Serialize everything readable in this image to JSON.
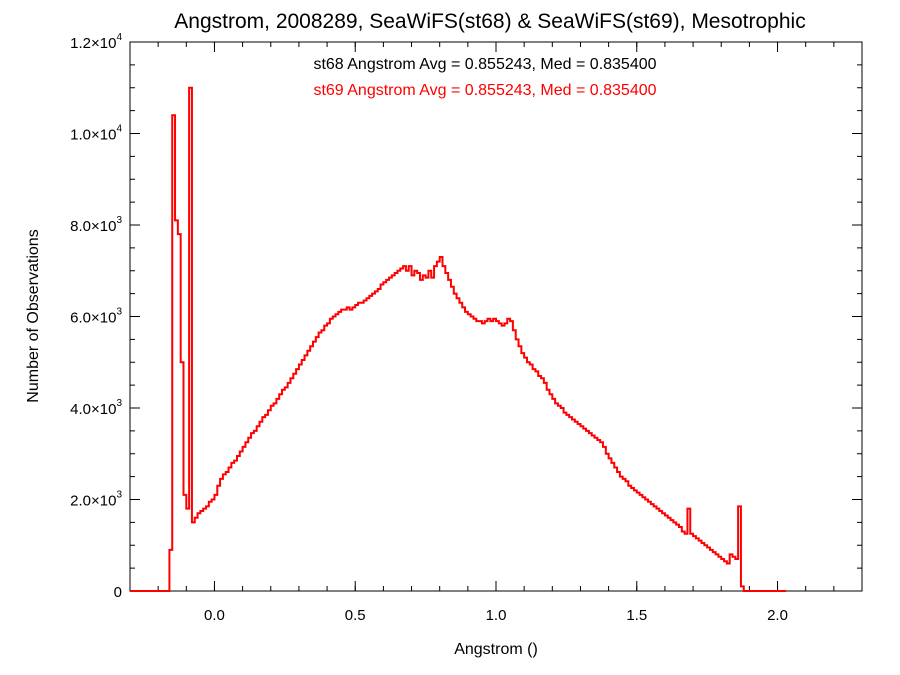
{
  "chart_data": {
    "type": "histogram",
    "title": "Angstrom, 2008289, SeaWiFS(st68) & SeaWiFS(st69), Mesotrophic",
    "xlabel": "Angstrom ()",
    "ylabel": "Number of Observations",
    "xlim": [
      -0.3,
      2.3
    ],
    "ylim": [
      0,
      12000
    ],
    "xticks": [
      {
        "value": 0.0,
        "label": "0.0"
      },
      {
        "value": 0.5,
        "label": "0.5"
      },
      {
        "value": 1.0,
        "label": "1.0"
      },
      {
        "value": 1.5,
        "label": "1.5"
      },
      {
        "value": 2.0,
        "label": "2.0"
      }
    ],
    "yticks": [
      {
        "value": 0,
        "mant": "0",
        "exp": ""
      },
      {
        "value": 2000,
        "mant": "2.0×10",
        "exp": "3"
      },
      {
        "value": 4000,
        "mant": "4.0×10",
        "exp": "3"
      },
      {
        "value": 6000,
        "mant": "6.0×10",
        "exp": "3"
      },
      {
        "value": 8000,
        "mant": "8.0×10",
        "exp": "3"
      },
      {
        "value": 10000,
        "mant": "1.0×10",
        "exp": "4"
      },
      {
        "value": 12000,
        "mant": "1.2×10",
        "exp": "4"
      }
    ],
    "annotations": [
      {
        "text": "st68 Angstrom Avg = 0.855243, Med = 0.835400",
        "color": "#000000"
      },
      {
        "text": "st69 Angstrom Avg = 0.855243, Med = 0.835400",
        "color": "#ff0000"
      }
    ],
    "colors": {
      "st68": "#000000",
      "st69": "#ff0000"
    },
    "series": [
      {
        "name": "st69",
        "color": "#ff0000",
        "bin_width": 0.01,
        "x_start": -0.3,
        "values": [
          0,
          0,
          0,
          0,
          0,
          0,
          0,
          0,
          0,
          0,
          0,
          0,
          0,
          0,
          900,
          10400,
          8100,
          7800,
          5000,
          2100,
          1800,
          11000,
          1500,
          1600,
          1700,
          1750,
          1800,
          1850,
          1950,
          2000,
          2100,
          2300,
          2450,
          2550,
          2600,
          2700,
          2800,
          2850,
          2950,
          3050,
          3150,
          3250,
          3350,
          3450,
          3500,
          3600,
          3700,
          3800,
          3850,
          3950,
          4050,
          4100,
          4200,
          4300,
          4400,
          4450,
          4550,
          4650,
          4750,
          4850,
          4950,
          5050,
          5150,
          5250,
          5350,
          5450,
          5550,
          5650,
          5700,
          5800,
          5850,
          5950,
          6000,
          6050,
          6100,
          6150,
          6150,
          6200,
          6150,
          6200,
          6250,
          6300,
          6300,
          6350,
          6400,
          6450,
          6500,
          6550,
          6600,
          6700,
          6750,
          6800,
          6850,
          6900,
          6950,
          7000,
          7050,
          7100,
          7000,
          7100,
          6900,
          7000,
          6950,
          6800,
          6900,
          6850,
          7000,
          6850,
          7100,
          7200,
          7300,
          7100,
          6950,
          6800,
          6650,
          6500,
          6400,
          6300,
          6200,
          6100,
          6050,
          6000,
          5950,
          5900,
          5900,
          5850,
          5900,
          5950,
          5900,
          5950,
          5900,
          5850,
          5800,
          5850,
          5950,
          5900,
          5700,
          5500,
          5350,
          5200,
          5100,
          5000,
          4950,
          4850,
          4800,
          4700,
          4650,
          4550,
          4400,
          4300,
          4200,
          4100,
          4050,
          4000,
          3900,
          3850,
          3800,
          3750,
          3700,
          3650,
          3600,
          3550,
          3500,
          3450,
          3400,
          3350,
          3300,
          3250,
          3150,
          3000,
          2900,
          2800,
          2700,
          2600,
          2500,
          2450,
          2400,
          2300,
          2250,
          2200,
          2150,
          2100,
          2050,
          2000,
          1950,
          1900,
          1850,
          1800,
          1750,
          1700,
          1650,
          1600,
          1550,
          1500,
          1450,
          1400,
          1300,
          1250,
          1800,
          1250,
          1200,
          1150,
          1100,
          1050,
          1000,
          950,
          900,
          850,
          800,
          750,
          700,
          650,
          600,
          800,
          750,
          700,
          1850,
          100,
          0,
          0,
          0,
          0,
          0,
          0,
          0,
          0,
          0,
          0,
          0,
          0,
          0,
          0,
          0
        ]
      }
    ]
  }
}
